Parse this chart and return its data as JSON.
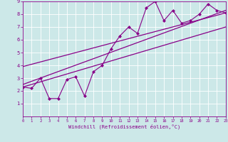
{
  "xlabel": "Windchill (Refroidissement éolien,°C)",
  "xlim": [
    0,
    23
  ],
  "ylim": [
    0,
    9
  ],
  "xticks": [
    0,
    1,
    2,
    3,
    4,
    5,
    6,
    7,
    8,
    9,
    10,
    11,
    12,
    13,
    14,
    15,
    16,
    17,
    18,
    19,
    20,
    21,
    22,
    23
  ],
  "yticks": [
    1,
    2,
    3,
    4,
    5,
    6,
    7,
    8,
    9
  ],
  "bg_color": "#cce8e8",
  "line_color": "#880088",
  "data_x": [
    0,
    1,
    2,
    3,
    4,
    5,
    6,
    7,
    8,
    9,
    10,
    11,
    12,
    13,
    14,
    15,
    16,
    17,
    18,
    19,
    20,
    21,
    22,
    23
  ],
  "data_y": [
    2.3,
    2.2,
    3.0,
    1.4,
    1.4,
    2.9,
    3.1,
    1.6,
    3.5,
    4.0,
    5.3,
    6.3,
    7.0,
    6.5,
    8.5,
    9.0,
    7.5,
    8.3,
    7.3,
    7.5,
    8.0,
    8.8,
    8.3,
    8.1
  ],
  "trend1_x": [
    0,
    23
  ],
  "trend1_y": [
    2.3,
    7.0
  ],
  "trend2_x": [
    0,
    23
  ],
  "trend2_y": [
    2.5,
    8.3
  ],
  "trend3_x": [
    0,
    23
  ],
  "trend3_y": [
    3.9,
    8.1
  ]
}
